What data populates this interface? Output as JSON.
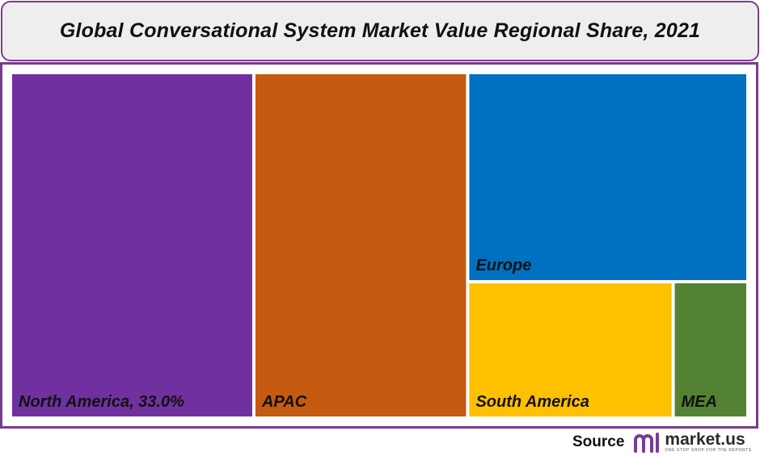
{
  "title": "Global Conversational System Market Value Regional Share, 2021",
  "chart_data": {
    "type": "treemap",
    "title": "Global Conversational System Market Value Regional Share, 2021",
    "items": [
      {
        "name": "North America",
        "label": "North America, 33.0%",
        "value": 33.0,
        "color": "#7030a0"
      },
      {
        "name": "APAC",
        "label": "APAC",
        "value": 29.0,
        "color": "#c55a11"
      },
      {
        "name": "Europe",
        "label": "Europe",
        "value": 23.0,
        "color": "#0070c0"
      },
      {
        "name": "South America",
        "label": "South America",
        "value": 11.0,
        "color": "#ffc000"
      },
      {
        "name": "MEA",
        "label": "MEA",
        "value": 4.0,
        "color": "#548235"
      }
    ]
  },
  "source": {
    "label": "Source",
    "logo_name": "market.us",
    "logo_tagline": "ONE STOP SHOP FOR THE REPORTS",
    "logo_color": "#7a3b8f"
  }
}
